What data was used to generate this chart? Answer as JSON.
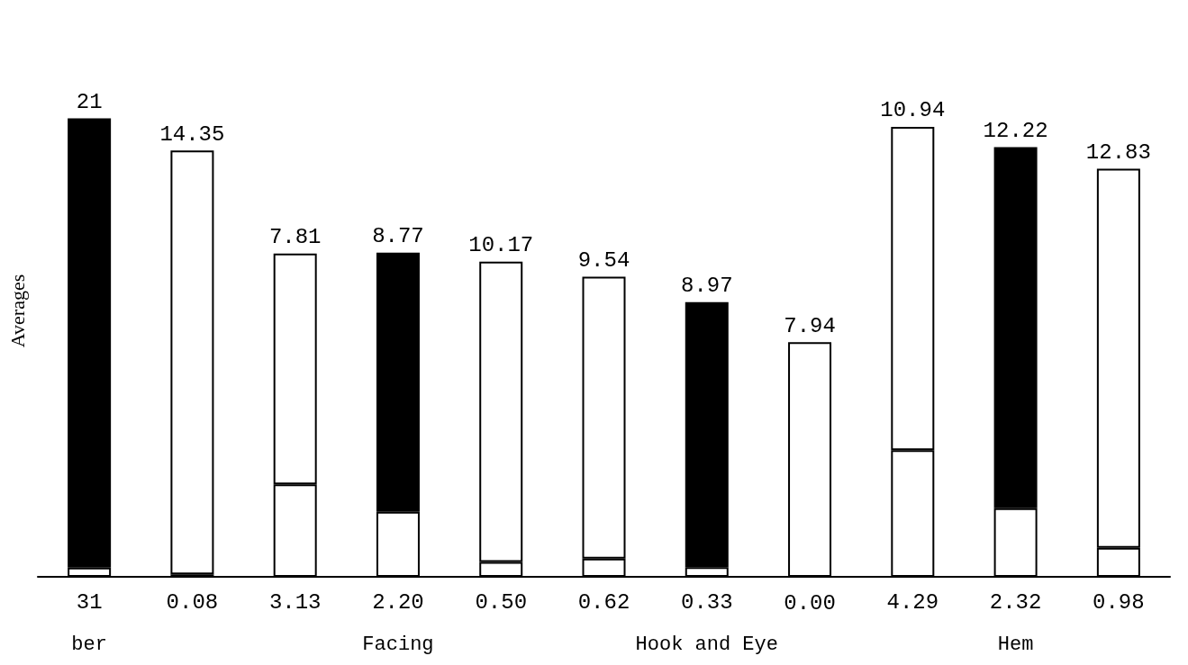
{
  "chart_data": {
    "type": "bar",
    "stacked": true,
    "ylabel": "Averages",
    "categories": [
      "ber",
      null,
      null,
      "Facing",
      null,
      null,
      "Hook and Eye",
      null,
      null,
      "Hem",
      null
    ],
    "series": [
      {
        "color": "#ffffff",
        "values": [
          0.31,
          0.08,
          3.13,
          2.2,
          0.5,
          0.62,
          0.33,
          0.0,
          4.29,
          2.32,
          0.98
        ],
        "value_labels": [
          null,
          "0.08",
          "3.13",
          "2.20",
          "0.50",
          "0.62",
          "0.33",
          "0.00",
          "4.29",
          "2.32",
          "0.98"
        ]
      },
      {
        "colors": [
          "#000000",
          "#ffffff",
          "#ffffff",
          "#000000",
          "#ffffff",
          "#ffffff",
          "#000000",
          "#ffffff",
          "#ffffff",
          "#000000",
          "#ffffff"
        ],
        "values": [
          15.21,
          14.35,
          7.81,
          8.77,
          10.17,
          9.54,
          8.97,
          7.94,
          10.94,
          12.22,
          12.83
        ],
        "value_labels": [
          null,
          "14.35",
          "7.81",
          "8.77",
          "10.17",
          "9.54",
          "8.97",
          "7.94",
          "10.94",
          "12.22",
          "12.83"
        ]
      }
    ],
    "annotations": [
      {
        "text": "21",
        "x": "ber",
        "y": 15.52
      },
      {
        "text": "31",
        "x": "ber",
        "y": 0
      }
    ],
    "grid": false
  }
}
